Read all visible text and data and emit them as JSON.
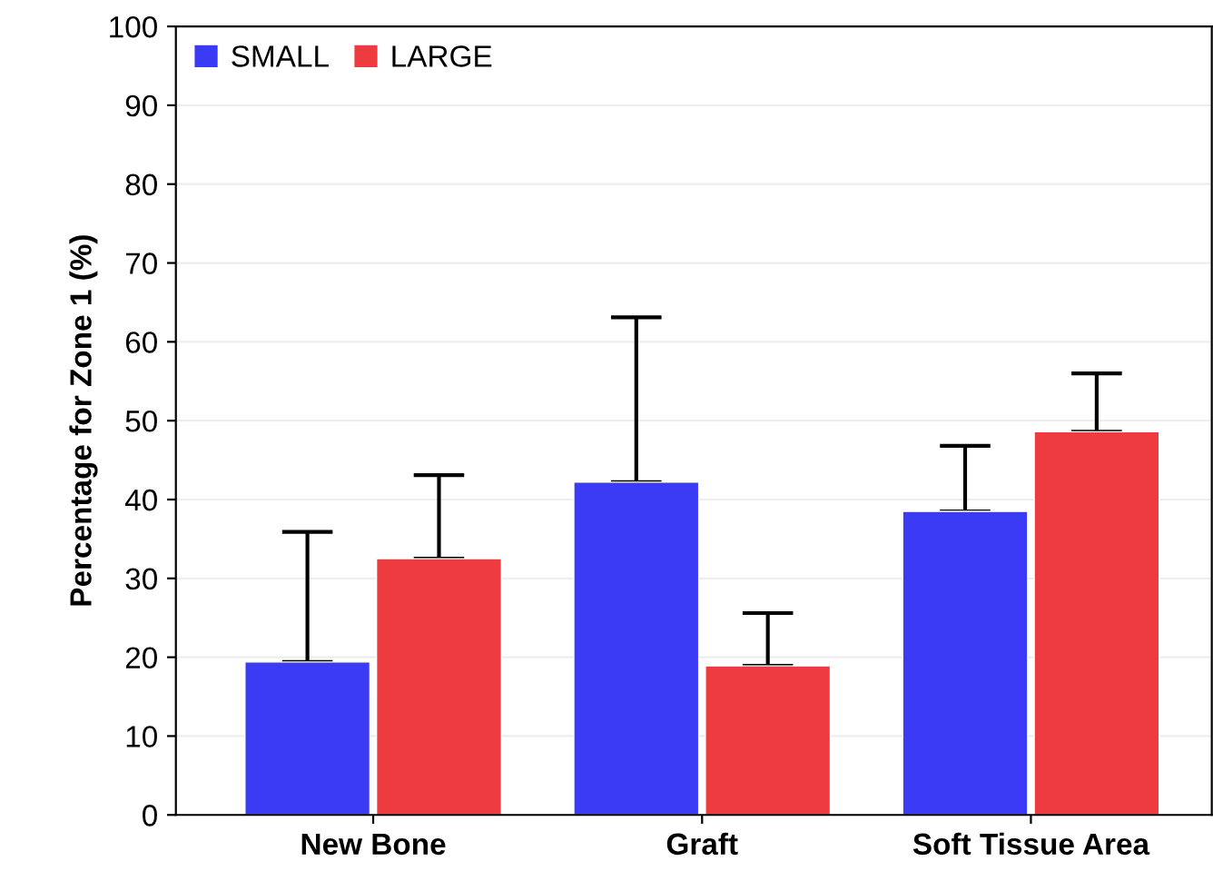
{
  "chart_data": {
    "type": "bar",
    "ylabel": "Percentage for Zone 1 (%)",
    "categories": [
      "New Bone",
      "Graft",
      "Soft Tissue Area"
    ],
    "series": [
      {
        "name": "SMALL",
        "color": "#3b3bf5",
        "values": [
          19.4,
          42.2,
          38.5
        ],
        "errors": [
          [
            19.4,
            35.9
          ],
          [
            42.2,
            63.1
          ],
          [
            38.5,
            46.8
          ]
        ]
      },
      {
        "name": "LARGE",
        "color": "#ee3b40",
        "values": [
          32.5,
          18.9,
          48.6
        ],
        "errors": [
          [
            32.5,
            43.1
          ],
          [
            18.9,
            25.6
          ],
          [
            48.6,
            56
          ]
        ]
      }
    ],
    "ylim": [
      0,
      100
    ],
    "yticks": [
      0,
      10,
      20,
      30,
      40,
      50,
      60,
      70,
      80,
      90,
      100
    ],
    "grid": "y",
    "legend": "top left"
  }
}
